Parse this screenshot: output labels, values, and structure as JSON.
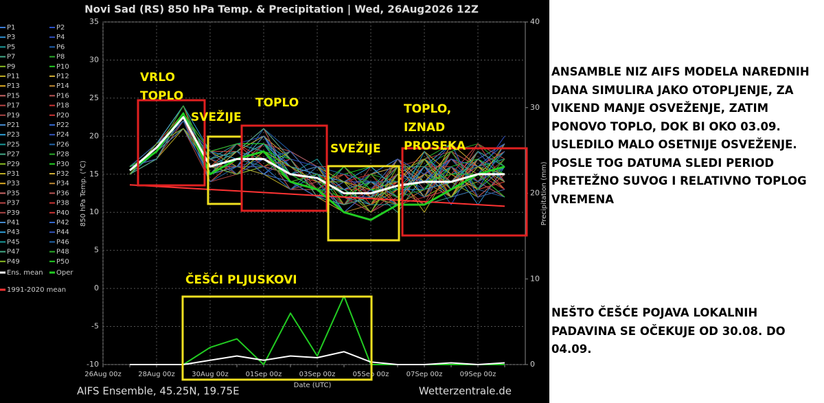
{
  "chart_data": {
    "type": "line",
    "title": "Novi Sad  (RS)  850 hPa Temp. & Precipitation | Wed, 26Aug2026 12Z",
    "x_label": "Date (UTC)",
    "y_label": "850 hPa Temp. (°C)",
    "y2_label": "Precipitation (mm)",
    "footer_left": "AIFS Ensemble, 45.25N, 19.75E",
    "footer_right": "Wetterzentrale.de",
    "categories": [
      "26Aug 00z",
      null,
      "28Aug 00z",
      null,
      "30Aug 00z",
      null,
      "01Sep 00z",
      null,
      "03Sep 00z",
      null,
      "05Sep 00z",
      null,
      "07Sep 00z",
      null,
      "09Sep 00z",
      null
    ],
    "ylim": [
      -10,
      35
    ],
    "yticks": [
      -10,
      -5,
      0,
      5,
      10,
      15,
      20,
      25,
      30,
      35
    ],
    "y2lim": [
      0,
      40
    ],
    "y2ticks": [
      0,
      10,
      20,
      30,
      40
    ],
    "grid": true,
    "series": [
      {
        "name": "P1",
        "color": "#3a7bd5",
        "values": [
          null,
          15,
          18,
          23,
          15,
          16,
          19,
          14,
          12,
          11,
          15,
          17,
          12,
          18,
          13,
          19
        ]
      },
      {
        "name": "P2",
        "color": "#2a50c8",
        "values": [
          null,
          16,
          19,
          22,
          17,
          18,
          15,
          17,
          16,
          14,
          10,
          12,
          16,
          11,
          17,
          13
        ]
      },
      {
        "name": "P3",
        "color": "#2e8fd0",
        "values": [
          null,
          15,
          18,
          24,
          16,
          15,
          18,
          13,
          15,
          10,
          13,
          16,
          14,
          16,
          11,
          16
        ]
      },
      {
        "name": "P4",
        "color": "#3050c0",
        "values": [
          null,
          16,
          19,
          21,
          18,
          19,
          20,
          16,
          13,
          15,
          12,
          11,
          18,
          13,
          15,
          20
        ]
      },
      {
        "name": "P5",
        "color": "#1a9a9a",
        "values": [
          null,
          15,
          17,
          23,
          14,
          17,
          16,
          15,
          17,
          12,
          14,
          13,
          11,
          15,
          19,
          14
        ]
      },
      {
        "name": "P6",
        "color": "#2060b0",
        "values": [
          null,
          16,
          18,
          22,
          17,
          16,
          21,
          18,
          14,
          13,
          11,
          15,
          13,
          17,
          14,
          12
        ]
      },
      {
        "name": "P7",
        "color": "#44aa88",
        "values": [
          null,
          15,
          19,
          23,
          15,
          18,
          17,
          14,
          12,
          16,
          13,
          10,
          15,
          12,
          16,
          17
        ]
      },
      {
        "name": "P8",
        "color": "#2aaa2a",
        "values": [
          null,
          16,
          18,
          24,
          16,
          17,
          19,
          16,
          15,
          11,
          15,
          14,
          17,
          19,
          12,
          15
        ]
      },
      {
        "name": "P9",
        "color": "#88bb22",
        "values": [
          null,
          15,
          18,
          22,
          18,
          15,
          16,
          13,
          14,
          13,
          10,
          16,
          12,
          14,
          18,
          16
        ]
      },
      {
        "name": "P10",
        "color": "#22cc22",
        "values": [
          null,
          16,
          19,
          23,
          16,
          19,
          18,
          17,
          13,
          12,
          14,
          12,
          16,
          13,
          15,
          18
        ]
      },
      {
        "name": "P11",
        "color": "#bbaa22",
        "values": [
          null,
          15,
          17,
          21,
          15,
          16,
          20,
          15,
          16,
          14,
          12,
          15,
          10,
          16,
          13,
          14
        ]
      },
      {
        "name": "P12",
        "color": "#ccaa33",
        "values": [
          null,
          16,
          18,
          23,
          17,
          18,
          15,
          14,
          12,
          10,
          13,
          17,
          14,
          18,
          16,
          13
        ]
      },
      {
        "name": "P13",
        "color": "#ddaa22",
        "values": [
          null,
          15,
          19,
          24,
          14,
          17,
          19,
          16,
          15,
          13,
          11,
          13,
          15,
          12,
          17,
          19
        ]
      },
      {
        "name": "P14",
        "color": "#bb8833",
        "values": [
          null,
          16,
          18,
          22,
          16,
          15,
          17,
          18,
          14,
          15,
          14,
          11,
          13,
          16,
          12,
          15
        ]
      },
      {
        "name": "P15",
        "color": "#cc6666",
        "values": [
          null,
          15,
          18,
          23,
          18,
          19,
          18,
          13,
          13,
          11,
          12,
          14,
          17,
          14,
          18,
          16
        ]
      },
      {
        "name": "P16",
        "color": "#bb5555",
        "values": [
          null,
          16,
          17,
          22,
          15,
          16,
          16,
          15,
          16,
          12,
          15,
          16,
          12,
          17,
          14,
          12
        ]
      },
      {
        "name": "P17",
        "color": "#bb4444",
        "values": [
          null,
          15,
          19,
          23,
          17,
          18,
          21,
          17,
          12,
          14,
          10,
          12,
          16,
          13,
          19,
          17
        ]
      },
      {
        "name": "P18",
        "color": "#cc3333",
        "values": [
          null,
          16,
          18,
          24,
          16,
          17,
          18,
          14,
          15,
          13,
          13,
          15,
          14,
          15,
          13,
          14
        ]
      },
      {
        "name": "P19",
        "color": "#aa4444",
        "values": [
          null,
          15,
          18,
          21,
          14,
          15,
          19,
          16,
          13,
          11,
          16,
          13,
          11,
          18,
          16,
          18
        ]
      },
      {
        "name": "P20",
        "color": "#cc3333",
        "values": [
          null,
          16,
          19,
          23,
          17,
          19,
          17,
          15,
          14,
          15,
          12,
          14,
          18,
          12,
          15,
          13
        ]
      },
      {
        "name": "P21",
        "color": "#4488cc",
        "values": [
          null,
          15,
          18,
          22,
          16,
          16,
          15,
          18,
          16,
          12,
          11,
          17,
          13,
          16,
          14,
          16
        ]
      },
      {
        "name": "P22",
        "color": "#3366cc",
        "values": [
          null,
          16,
          17,
          23,
          15,
          18,
          20,
          14,
          12,
          14,
          14,
          12,
          15,
          14,
          17,
          19
        ]
      },
      {
        "name": "P23",
        "color": "#2e9fd8",
        "values": [
          null,
          15,
          19,
          24,
          18,
          17,
          18,
          16,
          15,
          10,
          13,
          11,
          16,
          19,
          12,
          15
        ]
      },
      {
        "name": "P24",
        "color": "#3355bb",
        "values": [
          null,
          16,
          18,
          22,
          16,
          15,
          16,
          13,
          14,
          13,
          15,
          16,
          12,
          13,
          18,
          14
        ]
      },
      {
        "name": "P25",
        "color": "#1a9a9a",
        "values": [
          null,
          15,
          18,
          23,
          17,
          19,
          19,
          17,
          13,
          16,
          12,
          13,
          17,
          15,
          16,
          17
        ]
      },
      {
        "name": "P26",
        "color": "#2266aa",
        "values": [
          null,
          16,
          19,
          21,
          15,
          16,
          17,
          15,
          16,
          12,
          10,
          15,
          14,
          17,
          13,
          12
        ]
      },
      {
        "name": "P27",
        "color": "#44aa88",
        "values": [
          null,
          15,
          17,
          23,
          16,
          18,
          21,
          14,
          12,
          11,
          14,
          14,
          11,
          12,
          15,
          18
        ]
      },
      {
        "name": "P28",
        "color": "#2aaa2a",
        "values": [
          null,
          16,
          18,
          24,
          14,
          17,
          18,
          16,
          15,
          14,
          13,
          12,
          16,
          18,
          19,
          16
        ]
      },
      {
        "name": "P29",
        "color": "#88bb22",
        "values": [
          null,
          15,
          19,
          22,
          17,
          15,
          16,
          18,
          14,
          13,
          11,
          17,
          15,
          14,
          12,
          13
        ]
      },
      {
        "name": "P30",
        "color": "#22cc22",
        "values": [
          null,
          16,
          18,
          23,
          16,
          19,
          19,
          15,
          13,
          15,
          16,
          13,
          13,
          16,
          17,
          15
        ]
      },
      {
        "name": "P31",
        "color": "#bbaa22",
        "values": [
          null,
          15,
          18,
          22,
          18,
          16,
          15,
          13,
          16,
          11,
          12,
          11,
          17,
          13,
          14,
          19
        ]
      },
      {
        "name": "P32",
        "color": "#ccaa33",
        "values": [
          null,
          16,
          17,
          23,
          15,
          18,
          20,
          17,
          12,
          12,
          15,
          16,
          12,
          19,
          16,
          14
        ]
      },
      {
        "name": "P33",
        "color": "#ddaa22",
        "values": [
          null,
          15,
          19,
          24,
          16,
          17,
          17,
          14,
          15,
          14,
          13,
          14,
          18,
          15,
          13,
          17
        ]
      },
      {
        "name": "P34",
        "color": "#bb8833",
        "values": [
          null,
          16,
          18,
          21,
          17,
          15,
          18,
          16,
          14,
          10,
          11,
          15,
          14,
          12,
          18,
          16
        ]
      },
      {
        "name": "P35",
        "color": "#cc6666",
        "values": [
          null,
          15,
          18,
          23,
          15,
          19,
          16,
          15,
          13,
          13,
          14,
          12,
          15,
          17,
          15,
          12
        ]
      },
      {
        "name": "P36",
        "color": "#bb5555",
        "values": [
          null,
          16,
          19,
          22,
          16,
          16,
          19,
          18,
          16,
          16,
          12,
          17,
          13,
          14,
          16,
          18
        ]
      },
      {
        "name": "P37",
        "color": "#bb4444",
        "values": [
          null,
          15,
          17,
          23,
          18,
          18,
          21,
          14,
          12,
          12,
          10,
          13,
          16,
          16,
          12,
          15
        ]
      },
      {
        "name": "P38",
        "color": "#cc3333",
        "values": [
          null,
          16,
          18,
          24,
          14,
          17,
          17,
          16,
          15,
          14,
          15,
          11,
          12,
          13,
          17,
          13
        ]
      },
      {
        "name": "P39",
        "color": "#aa4444",
        "values": [
          null,
          15,
          19,
          22,
          17,
          15,
          18,
          13,
          14,
          11,
          13,
          16,
          17,
          18,
          14,
          17
        ]
      },
      {
        "name": "P40",
        "color": "#cc3333",
        "values": [
          null,
          16,
          18,
          23,
          16,
          19,
          16,
          17,
          13,
          15,
          11,
          14,
          11,
          15,
          19,
          14
        ]
      },
      {
        "name": "P41",
        "color": "#4488cc",
        "values": [
          null,
          15,
          18,
          21,
          15,
          16,
          20,
          15,
          16,
          13,
          14,
          12,
          16,
          12,
          13,
          16
        ]
      },
      {
        "name": "P42",
        "color": "#3366cc",
        "values": [
          null,
          16,
          17,
          23,
          17,
          18,
          15,
          14,
          12,
          12,
          12,
          15,
          14,
          17,
          16,
          19
        ]
      },
      {
        "name": "P43",
        "color": "#2e9fd8",
        "values": [
          null,
          15,
          19,
          24,
          16,
          17,
          19,
          16,
          15,
          14,
          16,
          13,
          13,
          14,
          15,
          15
        ]
      },
      {
        "name": "P44",
        "color": "#3355bb",
        "values": [
          null,
          16,
          18,
          22,
          18,
          15,
          17,
          18,
          14,
          10,
          13,
          17,
          15,
          19,
          12,
          13
        ]
      },
      {
        "name": "P45",
        "color": "#1a9a9a",
        "values": [
          null,
          15,
          18,
          23,
          15,
          19,
          18,
          15,
          13,
          13,
          11,
          11,
          18,
          13,
          18,
          16
        ]
      },
      {
        "name": "P46",
        "color": "#2266aa",
        "values": [
          null,
          16,
          19,
          22,
          14,
          16,
          16,
          13,
          16,
          15,
          14,
          14,
          12,
          16,
          14,
          18
        ]
      },
      {
        "name": "P47",
        "color": "#44aa88",
        "values": [
          null,
          15,
          17,
          23,
          17,
          18,
          21,
          17,
          12,
          11,
          12,
          16,
          16,
          14,
          17,
          14
        ]
      },
      {
        "name": "P48",
        "color": "#2aaa2a",
        "values": [
          null,
          16,
          18,
          24,
          16,
          17,
          17,
          14,
          15,
          12,
          15,
          12,
          13,
          18,
          13,
          17
        ]
      },
      {
        "name": "P49",
        "color": "#88bb22",
        "values": [
          null,
          15,
          19,
          21,
          16,
          15,
          18,
          16,
          14,
          14,
          10,
          15,
          17,
          12,
          16,
          15
        ]
      },
      {
        "name": "P50",
        "color": "#22cc22",
        "values": [
          null,
          16,
          18,
          23,
          18,
          19,
          19,
          15,
          13,
          16,
          13,
          13,
          14,
          15,
          15,
          12
        ]
      },
      {
        "name": "Ens. mean",
        "color": "#ffffff",
        "values": [
          null,
          15.5,
          18.5,
          22.5,
          16,
          17,
          17,
          15,
          14.5,
          12.5,
          12.5,
          13.5,
          14,
          14,
          15,
          15
        ],
        "precip_values": [
          null,
          0,
          0,
          0,
          0.5,
          1,
          0.5,
          1,
          0.8,
          1.5,
          0.3,
          0,
          0,
          0.2,
          0,
          0.2
        ]
      },
      {
        "name": "Oper",
        "color": "#22cc22",
        "values": [
          null,
          15.5,
          18,
          23,
          15,
          17,
          18,
          14,
          13,
          10,
          9,
          11,
          11,
          13,
          15,
          16
        ],
        "precip_values": [
          null,
          0,
          0,
          0,
          2,
          3,
          0,
          6,
          1,
          8,
          0,
          0,
          0,
          0,
          0,
          0
        ]
      },
      {
        "name": "1991-2020 mean",
        "color": "#ff3333",
        "values": [
          null,
          13.6,
          13.4,
          13.2,
          13,
          12.8,
          12.6,
          12.4,
          12.2,
          12,
          11.8,
          11.6,
          11.4,
          11.2,
          11,
          10.8
        ]
      }
    ],
    "annotations": [
      {
        "text": "VRLO TOPLO",
        "color": "#ffee00"
      },
      {
        "text": "SVEŽIJE",
        "color": "#ffee00"
      },
      {
        "text": "TOPLO",
        "color": "#ffee00"
      },
      {
        "text": "SVEŽIJE",
        "color": "#ffee00"
      },
      {
        "text": "TOPLO, IZNAD PROSEKA",
        "color": "#ffee00"
      },
      {
        "text": "ČEŠĆI PLJUSKOVI",
        "color": "#ffee00"
      }
    ]
  },
  "text_panel": {
    "paragraphs": [
      "ANSAMBLE NIZ AIFS MODELA NAREDNIH DANA SIMULIRA JAKO OTOPLJENJE, ZA VIKEND MANJE OSVEŽENJE, ZATIM PONOVO TOPLO, DOK BI OKO 03.09. USLEDILO MALO OSETNIJE OSVEŽENJE. POSLE TOG DATUMA SLEDI PERIOD PRETEŽNO SUVOG I RELATIVNO TOPLOG VREMENA",
      "NEŠTO ČEŠĆE POJAVA LOKALNIH PADAVINA SE OČEKUJE OD 30.08. DO 04.09."
    ]
  }
}
